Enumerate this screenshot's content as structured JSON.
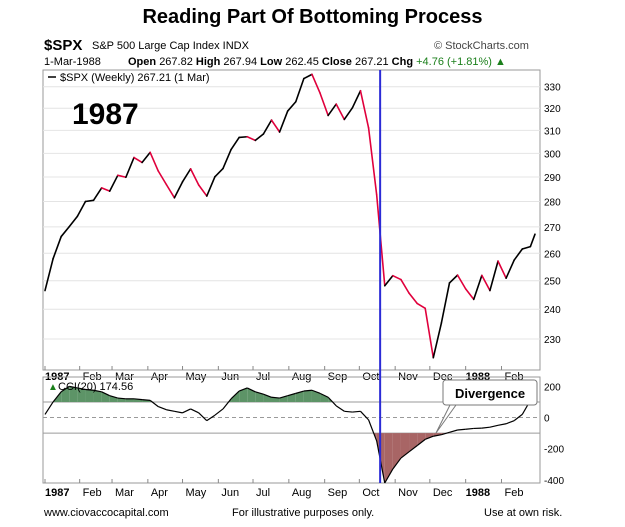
{
  "header": {
    "title": "Reading Part Of Bottoming Process",
    "symbol": "$SPX",
    "description": "S&P 500 Large Cap Index INDX",
    "credit": "© StockCharts.com",
    "date": "1-Mar-1988",
    "open_label": "Open",
    "open": "267.82",
    "high_label": "High",
    "high": "267.94",
    "low_label": "Low",
    "low": "262.45",
    "close_label": "Close",
    "close": "267.21",
    "chg_label": "Chg",
    "chg": "+4.76 (+1.81%)"
  },
  "footer": {
    "left": "www.ciovaccocapital.com",
    "middle": "For illustrative purposes only.",
    "right": "Use at own risk."
  },
  "chart_data": [
    {
      "type": "line",
      "legend": "$SPX (Weekly) 267.21 (1 Mar)",
      "annotation": "1987",
      "scale": "log",
      "ylim": [
        220,
        338
      ],
      "yticks": [
        230,
        240,
        250,
        260,
        270,
        280,
        290,
        300,
        310,
        320,
        330
      ],
      "xtick_labels": [
        "1987",
        "Feb",
        "Mar",
        "Apr",
        "May",
        "Jun",
        "Jul",
        "Aug",
        "Sep",
        "Oct",
        "Nov",
        "Dec",
        "1988",
        "Feb"
      ],
      "colors": {
        "rising": "#000000",
        "falling": "#e0003c",
        "marker": "#2b2bd6"
      },
      "marker_line_date": "1987-10-19",
      "series": [
        {
          "values": [
            [
              "1987-01-02",
              246.5
            ],
            [
              "1987-01-09",
              258
            ],
            [
              "1987-01-16",
              266.3
            ],
            [
              "1987-01-23",
              270.1
            ],
            [
              "1987-01-30",
              274.1
            ],
            [
              "1987-02-06",
              280.0
            ],
            [
              "1987-02-13",
              280.5
            ],
            [
              "1987-02-20",
              285.5
            ],
            [
              "1987-02-27",
              284.2
            ],
            [
              "1987-03-06",
              290.7
            ],
            [
              "1987-03-13",
              289.9
            ],
            [
              "1987-03-20",
              298.2
            ],
            [
              "1987-03-27",
              296.1
            ],
            [
              "1987-04-03",
              300.4
            ],
            [
              "1987-04-10",
              292.5
            ],
            [
              "1987-04-17",
              286.9
            ],
            [
              "1987-04-24",
              281.5
            ],
            [
              "1987-05-01",
              288.0
            ],
            [
              "1987-05-08",
              293.4
            ],
            [
              "1987-05-15",
              286.7
            ],
            [
              "1987-05-22",
              282.2
            ],
            [
              "1987-05-29",
              290.1
            ],
            [
              "1987-06-05",
              293.5
            ],
            [
              "1987-06-12",
              301.6
            ],
            [
              "1987-06-19",
              306.9
            ],
            [
              "1987-06-26",
              307.2
            ],
            [
              "1987-07-03",
              305.6
            ],
            [
              "1987-07-10",
              308.4
            ],
            [
              "1987-07-17",
              314.6
            ],
            [
              "1987-07-24",
              309.3
            ],
            [
              "1987-07-31",
              318.7
            ],
            [
              "1987-08-07",
              323.0
            ],
            [
              "1987-08-14",
              333.9
            ],
            [
              "1987-08-21",
              335.9
            ],
            [
              "1987-08-28",
              327.0
            ],
            [
              "1987-09-04",
              316.7
            ],
            [
              "1987-09-11",
              321.9
            ],
            [
              "1987-09-18",
              314.9
            ],
            [
              "1987-09-25",
              320.2
            ],
            [
              "1987-10-02",
              328.1
            ],
            [
              "1987-10-09",
              311.1
            ],
            [
              "1987-10-16",
              282.7
            ],
            [
              "1987-10-23",
              248.2
            ],
            [
              "1987-10-30",
              251.8
            ],
            [
              "1987-11-06",
              250.4
            ],
            [
              "1987-11-13",
              245.6
            ],
            [
              "1987-11-20",
              242.0
            ],
            [
              "1987-11-27",
              240.3
            ],
            [
              "1987-12-04",
              223.9
            ],
            [
              "1987-12-11",
              235.3
            ],
            [
              "1987-12-18",
              249.2
            ],
            [
              "1987-12-25",
              252.0
            ],
            [
              "1988-01-01",
              247.1
            ],
            [
              "1988-01-08",
              243.4
            ],
            [
              "1988-01-15",
              251.9
            ],
            [
              "1988-01-22",
              246.5
            ],
            [
              "1988-01-29",
              257.1
            ],
            [
              "1988-02-05",
              250.9
            ],
            [
              "1988-02-12",
              257.5
            ],
            [
              "1988-02-19",
              261.6
            ],
            [
              "1988-02-26",
              262.5
            ],
            [
              "1988-03-01",
              267.2
            ]
          ]
        }
      ]
    },
    {
      "type": "area",
      "legend": "CCI(20) 174.56",
      "annotation": "Divergence",
      "ylim": [
        -420,
        260
      ],
      "yticks": [
        -400,
        -200,
        0,
        200
      ],
      "reference_lines": [
        100,
        0,
        -100
      ],
      "xtick_labels": [
        "1987",
        "Feb",
        "Mar",
        "Apr",
        "May",
        "Jun",
        "Jul",
        "Aug",
        "Sep",
        "Oct",
        "Nov",
        "Dec",
        "1988",
        "Feb"
      ],
      "colors": {
        "above_100": "#5d9467",
        "below_minus_100": "#a86565",
        "line": "#000000"
      },
      "series": [
        {
          "values": [
            [
              "1987-01-02",
              20
            ],
            [
              "1987-01-09",
              100
            ],
            [
              "1987-01-16",
              165
            ],
            [
              "1987-01-23",
              200
            ],
            [
              "1987-01-30",
              190
            ],
            [
              "1987-02-06",
              180
            ],
            [
              "1987-02-13",
              175
            ],
            [
              "1987-02-20",
              165
            ],
            [
              "1987-02-27",
              140
            ],
            [
              "1987-03-06",
              125
            ],
            [
              "1987-03-13",
              120
            ],
            [
              "1987-03-20",
              120
            ],
            [
              "1987-03-27",
              115
            ],
            [
              "1987-04-03",
              110
            ],
            [
              "1987-04-10",
              70
            ],
            [
              "1987-04-17",
              50
            ],
            [
              "1987-04-24",
              40
            ],
            [
              "1987-05-01",
              30
            ],
            [
              "1987-05-08",
              55
            ],
            [
              "1987-05-15",
              30
            ],
            [
              "1987-05-22",
              -20
            ],
            [
              "1987-05-29",
              15
            ],
            [
              "1987-06-05",
              55
            ],
            [
              "1987-06-12",
              120
            ],
            [
              "1987-06-19",
              170
            ],
            [
              "1987-06-26",
              190
            ],
            [
              "1987-07-03",
              165
            ],
            [
              "1987-07-10",
              150
            ],
            [
              "1987-07-17",
              130
            ],
            [
              "1987-07-24",
              125
            ],
            [
              "1987-07-31",
              140
            ],
            [
              "1987-08-07",
              155
            ],
            [
              "1987-08-14",
              170
            ],
            [
              "1987-08-21",
              175
            ],
            [
              "1987-08-28",
              155
            ],
            [
              "1987-09-04",
              130
            ],
            [
              "1987-09-11",
              75
            ],
            [
              "1987-09-18",
              40
            ],
            [
              "1987-09-25",
              35
            ],
            [
              "1987-10-02",
              40
            ],
            [
              "1987-10-09",
              -15
            ],
            [
              "1987-10-16",
              -150
            ],
            [
              "1987-10-23",
              -420
            ],
            [
              "1987-10-30",
              -330
            ],
            [
              "1987-11-06",
              -260
            ],
            [
              "1987-11-13",
              -220
            ],
            [
              "1987-11-20",
              -180
            ],
            [
              "1987-11-27",
              -140
            ],
            [
              "1987-12-04",
              -120
            ],
            [
              "1987-12-11",
              -110
            ],
            [
              "1987-12-18",
              -95
            ],
            [
              "1987-12-25",
              -80
            ],
            [
              "1988-01-01",
              -75
            ],
            [
              "1988-01-08",
              -70
            ],
            [
              "1988-01-15",
              -68
            ],
            [
              "1988-01-22",
              -62
            ],
            [
              "1988-01-29",
              -50
            ],
            [
              "1988-02-05",
              -40
            ],
            [
              "1988-02-12",
              -20
            ],
            [
              "1988-02-19",
              20
            ],
            [
              "1988-02-26",
              110
            ],
            [
              "1988-03-01",
              174.56
            ]
          ]
        }
      ]
    }
  ]
}
